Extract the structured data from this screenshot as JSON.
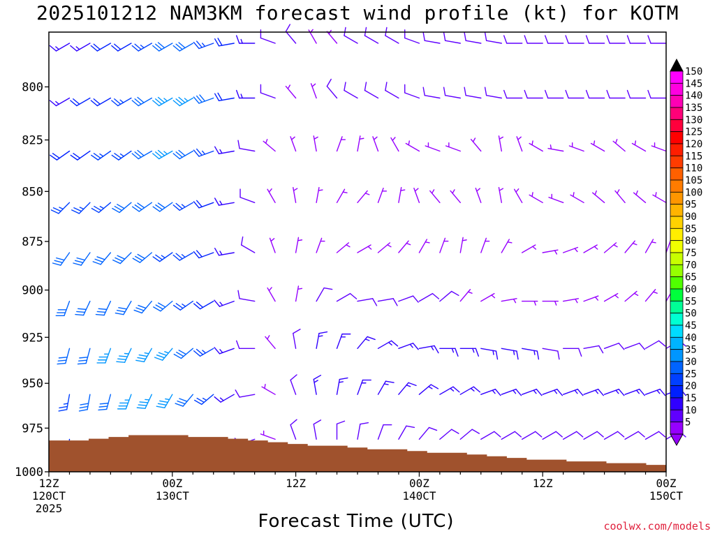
{
  "title": "2025101212 NAM3KM forecast wind profile (kt) for KOTM",
  "credit": "coolwx.com/models",
  "chart_data": {
    "type": "wind-barb-time-height",
    "xlabel": "Forecast Time (UTC)",
    "ylabel": "",
    "x_ticks": [
      {
        "hour": 0,
        "lines": [
          "12Z",
          "120CT",
          "2025"
        ]
      },
      {
        "hour": 12,
        "lines": [
          "00Z",
          "130CT"
        ]
      },
      {
        "hour": 24,
        "lines": [
          "12Z"
        ]
      },
      {
        "hour": 36,
        "lines": [
          "00Z",
          "140CT"
        ]
      },
      {
        "hour": 48,
        "lines": [
          "12Z"
        ]
      },
      {
        "hour": 60,
        "lines": [
          "00Z",
          "150CT"
        ]
      }
    ],
    "xlim": [
      0,
      60
    ],
    "time_step_hours": 2,
    "y_ticks": [
      800,
      825,
      850,
      875,
      900,
      925,
      950,
      975,
      1000
    ],
    "ylim": [
      1000,
      775
    ],
    "y_scale": "log-pressure",
    "levels_mb": [
      775,
      800,
      825,
      850,
      875,
      900,
      925,
      950,
      975
    ],
    "surface_pressure_mb": [
      982,
      982,
      981,
      980,
      979,
      979,
      979,
      980,
      980,
      981,
      982,
      983,
      984,
      985,
      985,
      986,
      987,
      987,
      988,
      989,
      989,
      990,
      991,
      992,
      993,
      993,
      994,
      994,
      995,
      995,
      996
    ],
    "surface_color": "#a0522d",
    "colorbar": {
      "unit": "kt",
      "labels": [
        150,
        145,
        140,
        135,
        130,
        125,
        120,
        115,
        110,
        105,
        100,
        95,
        90,
        85,
        80,
        75,
        70,
        65,
        60,
        55,
        50,
        45,
        40,
        35,
        30,
        25,
        20,
        15,
        10,
        5
      ],
      "colors": [
        "#ff00ff",
        "#ff00e0",
        "#ff00b4",
        "#ff0078",
        "#ff003c",
        "#ff0000",
        "#ff1e00",
        "#ff3c00",
        "#ff6000",
        "#ff7c00",
        "#ff9600",
        "#ffb400",
        "#ffd200",
        "#ffee00",
        "#f0ff00",
        "#c8ff00",
        "#96ff00",
        "#50ff00",
        "#00ff3c",
        "#00ff96",
        "#00ffd2",
        "#00dcff",
        "#00b4ff",
        "#0096ff",
        "#0064ff",
        "#0040ff",
        "#0020ff",
        "#3000ff",
        "#6000ff",
        "#9600ff"
      ]
    },
    "wind_speed_kt": [
      [
        15,
        15,
        15,
        20,
        20,
        25,
        30,
        30,
        25,
        20,
        15,
        10,
        10,
        5,
        5,
        10,
        10,
        10,
        10,
        10,
        10,
        10,
        10,
        10,
        10,
        10,
        10,
        10,
        10,
        10,
        10
      ],
      [
        15,
        15,
        20,
        20,
        25,
        30,
        35,
        35,
        30,
        20,
        15,
        10,
        5,
        5,
        10,
        10,
        10,
        10,
        10,
        10,
        10,
        10,
        10,
        10,
        10,
        10,
        10,
        10,
        10,
        10,
        10
      ],
      [
        20,
        20,
        20,
        25,
        25,
        30,
        35,
        30,
        25,
        15,
        10,
        5,
        5,
        5,
        5,
        5,
        5,
        5,
        5,
        5,
        5,
        5,
        5,
        5,
        5,
        5,
        5,
        5,
        5,
        5,
        5
      ],
      [
        25,
        25,
        25,
        25,
        30,
        30,
        30,
        25,
        20,
        15,
        10,
        5,
        5,
        5,
        5,
        5,
        5,
        5,
        5,
        5,
        5,
        5,
        5,
        5,
        5,
        5,
        5,
        5,
        5,
        5,
        5
      ],
      [
        25,
        30,
        30,
        30,
        30,
        30,
        25,
        25,
        20,
        15,
        10,
        5,
        5,
        5,
        5,
        5,
        5,
        5,
        5,
        5,
        5,
        5,
        5,
        5,
        5,
        5,
        5,
        5,
        5,
        5,
        5
      ],
      [
        30,
        30,
        30,
        30,
        30,
        30,
        30,
        25,
        20,
        15,
        10,
        5,
        5,
        10,
        10,
        10,
        10,
        10,
        10,
        10,
        5,
        5,
        5,
        5,
        5,
        5,
        5,
        5,
        5,
        5,
        5
      ],
      [
        30,
        30,
        30,
        35,
        35,
        35,
        35,
        30,
        25,
        15,
        10,
        5,
        10,
        15,
        15,
        15,
        15,
        15,
        15,
        15,
        15,
        15,
        15,
        15,
        10,
        10,
        10,
        10,
        10,
        10,
        10
      ],
      [
        25,
        25,
        30,
        30,
        35,
        35,
        35,
        30,
        25,
        15,
        10,
        5,
        10,
        15,
        15,
        15,
        15,
        15,
        15,
        15,
        15,
        15,
        15,
        15,
        15,
        15,
        15,
        15,
        15,
        15,
        15
      ],
      [
        15,
        20,
        20,
        25,
        25,
        25,
        25,
        25,
        20,
        10,
        10,
        5,
        10,
        10,
        10,
        10,
        10,
        10,
        10,
        10,
        10,
        10,
        10,
        10,
        10,
        10,
        10,
        10,
        10,
        10,
        10
      ]
    ],
    "wind_direction_deg": [
      [
        240,
        240,
        240,
        240,
        240,
        240,
        240,
        240,
        250,
        260,
        270,
        290,
        320,
        330,
        320,
        300,
        300,
        300,
        290,
        280,
        280,
        280,
        280,
        270,
        270,
        270,
        270,
        270,
        270,
        270,
        270
      ],
      [
        240,
        240,
        240,
        240,
        240,
        240,
        240,
        240,
        250,
        260,
        270,
        290,
        320,
        340,
        320,
        300,
        300,
        300,
        290,
        280,
        280,
        280,
        280,
        270,
        270,
        270,
        270,
        270,
        270,
        270,
        270
      ],
      [
        235,
        235,
        235,
        235,
        235,
        240,
        240,
        240,
        250,
        260,
        280,
        310,
        340,
        350,
        20,
        10,
        340,
        330,
        300,
        290,
        290,
        320,
        350,
        340,
        300,
        280,
        290,
        300,
        310,
        300,
        290
      ],
      [
        225,
        225,
        225,
        230,
        230,
        235,
        235,
        240,
        250,
        260,
        290,
        330,
        350,
        10,
        30,
        40,
        20,
        10,
        340,
        320,
        320,
        340,
        350,
        330,
        300,
        290,
        300,
        310,
        320,
        310,
        300
      ],
      [
        210,
        215,
        215,
        220,
        225,
        230,
        235,
        240,
        250,
        260,
        300,
        340,
        10,
        20,
        50,
        60,
        50,
        40,
        30,
        20,
        10,
        20,
        30,
        60,
        80,
        70,
        60,
        50,
        40,
        30,
        20
      ],
      [
        200,
        200,
        205,
        205,
        210,
        220,
        230,
        235,
        240,
        250,
        280,
        330,
        10,
        30,
        60,
        80,
        80,
        70,
        60,
        50,
        40,
        60,
        80,
        90,
        90,
        80,
        70,
        60,
        50,
        40,
        30
      ],
      [
        195,
        195,
        195,
        200,
        205,
        210,
        220,
        230,
        240,
        250,
        270,
        320,
        350,
        10,
        20,
        40,
        60,
        70,
        80,
        90,
        90,
        100,
        100,
        100,
        100,
        90,
        80,
        70,
        70,
        60,
        60
      ],
      [
        190,
        190,
        190,
        195,
        200,
        205,
        210,
        220,
        230,
        240,
        260,
        300,
        340,
        350,
        10,
        20,
        30,
        40,
        50,
        60,
        60,
        70,
        70,
        70,
        70,
        70,
        70,
        70,
        70,
        70,
        70
      ],
      [
        180,
        185,
        190,
        195,
        200,
        205,
        210,
        215,
        225,
        235,
        250,
        290,
        340,
        350,
        0,
        10,
        20,
        30,
        40,
        50,
        50,
        60,
        60,
        60,
        60,
        60,
        60,
        60,
        60,
        60,
        60
      ]
    ]
  }
}
